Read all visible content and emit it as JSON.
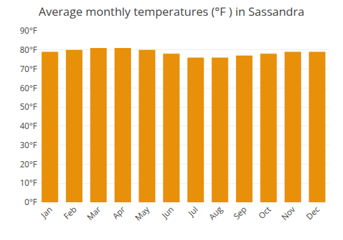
{
  "chart_data": {
    "type": "bar",
    "title": "Average monthly temperatures (°F ) in Sassandra",
    "categories": [
      "Jan",
      "Feb",
      "Mar",
      "Apr",
      "May",
      "Jun",
      "Jul",
      "Aug",
      "Sep",
      "Oct",
      "Nov",
      "Dec"
    ],
    "values": [
      79,
      80,
      81,
      81,
      80,
      78,
      76,
      76,
      77,
      78,
      79,
      79
    ],
    "color": "#E8900A",
    "ylim": [
      0,
      90
    ],
    "yticks": [
      {
        "value": 0,
        "label": "0°F"
      },
      {
        "value": 10,
        "label": "10°F"
      },
      {
        "value": 20,
        "label": "20°F"
      },
      {
        "value": 30,
        "label": "30°F"
      },
      {
        "value": 40,
        "label": "40°F"
      },
      {
        "value": 50,
        "label": "50°F"
      },
      {
        "value": 60,
        "label": "60°F"
      },
      {
        "value": 70,
        "label": "70°F"
      },
      {
        "value": 80,
        "label": "80°F"
      },
      {
        "value": 90,
        "label": "90°F"
      }
    ],
    "grid": true
  }
}
